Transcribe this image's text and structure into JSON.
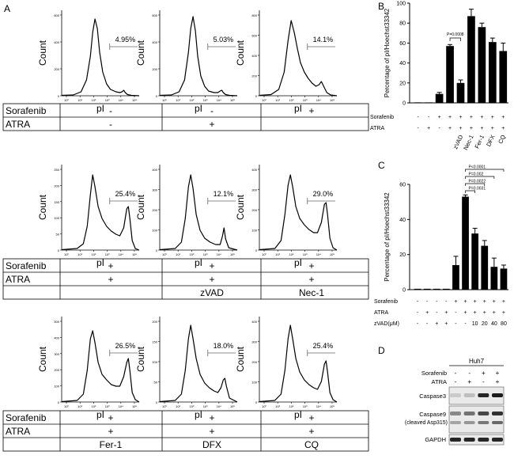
{
  "panel_labels": {
    "a": "A",
    "b": "B",
    "c": "C",
    "d": "D"
  },
  "flow": {
    "x_label": "pI",
    "y_label": "Count",
    "x_ticks": [
      "10⁰",
      "10¹",
      "10²",
      "10³",
      "10⁴",
      "10⁵"
    ],
    "row_label_sorafenib": "Sorafenib",
    "row_label_atra": "ATRA",
    "plots": [
      {
        "pct": "4.95%",
        "ymax": 600,
        "yticks": [
          "0",
          "200",
          "400",
          "600"
        ],
        "sorafenib": "-",
        "atra": "-",
        "treatment": ""
      },
      {
        "pct": "5.03%",
        "ymax": 600,
        "yticks": [
          "0",
          "200",
          "400",
          "600"
        ],
        "sorafenib": "-",
        "atra": "+",
        "treatment": ""
      },
      {
        "pct": "14.1%",
        "ymax": 800,
        "yticks": [
          "0",
          "200",
          "400",
          "600",
          "800"
        ],
        "sorafenib": "+",
        "atra": "",
        "treatment": ""
      },
      {
        "pct": "25.4%",
        "ymax": 250,
        "yticks": [
          "0",
          "50",
          "100",
          "150",
          "200",
          "250"
        ],
        "sorafenib": "+",
        "atra": "+",
        "treatment": ""
      },
      {
        "pct": "12.1%",
        "ymax": 400,
        "yticks": [
          "0",
          "100",
          "200",
          "300",
          "400"
        ],
        "sorafenib": "+",
        "atra": "+",
        "treatment": "zVAD"
      },
      {
        "pct": "29.0%",
        "ymax": 400,
        "yticks": [
          "0",
          "100",
          "200",
          "300",
          "400"
        ],
        "sorafenib": "+",
        "atra": "+",
        "treatment": "Nec-1"
      },
      {
        "pct": "26.5%",
        "ymax": 500,
        "yticks": [
          "0",
          "100",
          "200",
          "300",
          "400",
          "500"
        ],
        "sorafenib": "+",
        "atra": "+",
        "treatment": "Fer-1"
      },
      {
        "pct": "18.0%",
        "ymax": 200,
        "yticks": [
          "0",
          "50",
          "100",
          "150",
          "200"
        ],
        "sorafenib": "+",
        "atra": "+",
        "treatment": "DFX"
      },
      {
        "pct": "25.4%",
        "ymax": 400,
        "yticks": [
          "0",
          "100",
          "200",
          "300",
          "400"
        ],
        "sorafenib": "+",
        "atra": "+",
        "treatment": "CQ"
      }
    ]
  },
  "chart_data": [
    {
      "type": "bar",
      "panel": "B",
      "ylabel": "Percentage of pI/Hoechst33342",
      "ylim": [
        0,
        100
      ],
      "yticks": [
        0,
        20,
        40,
        60,
        80,
        100
      ],
      "values": [
        0.5,
        0.5,
        9,
        57,
        20,
        87,
        76,
        61,
        52
      ],
      "errors": [
        0.3,
        0.3,
        1.5,
        1.5,
        3,
        7,
        4,
        4,
        8
      ],
      "sorafenib": [
        "-",
        "-",
        "+",
        "+",
        "+",
        "+",
        "+",
        "+",
        "+"
      ],
      "atra": [
        "-",
        "+",
        "-",
        "+",
        "+",
        "+",
        "+",
        "+",
        "+"
      ],
      "categories": [
        "",
        "",
        "",
        "",
        "zVAD",
        "Nec-1",
        "Fer-1",
        "DFX",
        "CQ"
      ],
      "row_labels": [
        "Sorafenib",
        "ATRA"
      ],
      "annotations": [
        "P=0.0008"
      ]
    },
    {
      "type": "bar",
      "panel": "C",
      "ylabel": "Percentage of pI/Hoechst33342",
      "ylim": [
        0,
        60
      ],
      "yticks": [
        0,
        20,
        40,
        60
      ],
      "values": [
        0.5,
        0.5,
        0.5,
        0.5,
        14,
        53,
        32,
        25,
        13,
        12
      ],
      "errors": [
        0.3,
        0.3,
        0.3,
        0.3,
        5,
        1,
        3,
        3,
        5,
        2
      ],
      "sorafenib": [
        "-",
        "-",
        "-",
        "-",
        "+",
        "+",
        "+",
        "+",
        "+",
        "+"
      ],
      "atra": [
        "-",
        "+",
        "-",
        "+",
        "-",
        "+",
        "+",
        "+",
        "+",
        "+"
      ],
      "zvad": [
        "-",
        "-",
        "+",
        "+",
        "-",
        "-",
        "10",
        "20",
        "40",
        "80"
      ],
      "row_labels": [
        "Sorafenib",
        "ATRA",
        "zVAD(μM)"
      ],
      "annotations": [
        "P<0.0001",
        "P=0.002",
        "P=0.0022",
        "P=0.0031"
      ]
    }
  ],
  "western": {
    "cell_line": "Huh7",
    "row_labels": [
      "Sorafenib",
      "ATRA"
    ],
    "sorafenib": [
      "-",
      "-",
      "+",
      "+"
    ],
    "atra": [
      "-",
      "+",
      "-",
      "+"
    ],
    "bands": [
      "Caspase3",
      "Caspase9",
      "(cleaved Asp315)",
      "GAPDH"
    ]
  }
}
